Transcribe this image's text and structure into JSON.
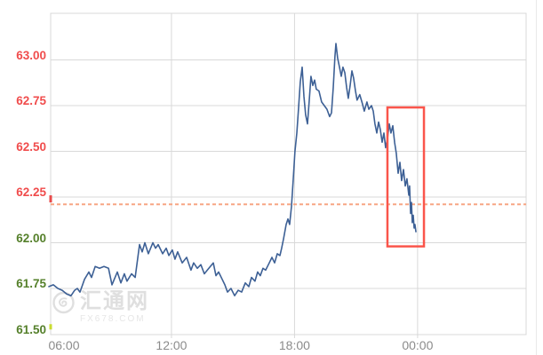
{
  "watermark": {
    "name": "汇通网",
    "domain": "FX678.COM"
  },
  "colors": {
    "background": "#ffffff",
    "grid": "#d9d9d9",
    "plot_border": "#d9d9d9",
    "line": "#3d6095",
    "red_tick_label": "#f04c4c",
    "green_tick_label": "#55802b",
    "x_tick_label": "#8b8b8b",
    "reference_line": "#f7a684",
    "highlight_box": "#fa554b",
    "watermark": "#dfdfdf",
    "right_edge_line": "#e9e9e9"
  },
  "chart_data": {
    "type": "line",
    "title": "",
    "xlabel": "",
    "ylabel": "",
    "grid": true,
    "legend": false,
    "x_axis": {
      "labels": [
        "06:00",
        "12:00",
        "18:00",
        "00:00"
      ],
      "hours_from_start": [
        0,
        6,
        12,
        18
      ]
    },
    "y_axis": {
      "ticks": [
        63.0,
        62.75,
        62.5,
        62.25,
        62.0,
        61.75,
        61.5
      ],
      "tick_labels": [
        "63.00",
        "62.75",
        "62.50",
        "62.25",
        "62.00",
        "61.75",
        "61.50"
      ],
      "tick_colors": [
        "#f04c4c",
        "#f04c4c",
        "#f04c4c",
        "#f04c4c",
        "#55802b",
        "#55802b",
        "#55802b"
      ]
    },
    "ylim": [
      61.46,
      63.26
    ],
    "xlim_hours": [
      0.0,
      23.3
    ],
    "reference_line": {
      "value": 62.21,
      "style": "dashed",
      "color": "#f7a684"
    },
    "highlight_box": {
      "t0": 16.53,
      "t1": 18.31,
      "v0": 61.98,
      "v1": 62.74,
      "color": "#fa554b"
    },
    "axis_marks": [
      {
        "value": 62.24,
        "height": 8,
        "color": "#e84a4a"
      },
      {
        "value": 61.54,
        "height": 6,
        "color": "#c9dc30"
      }
    ],
    "series": [
      {
        "name": "price",
        "color": "#3d6095",
        "points": [
          [
            0.02,
            61.76
          ],
          [
            0.24,
            61.77
          ],
          [
            0.46,
            61.75
          ],
          [
            0.67,
            61.74
          ],
          [
            0.89,
            61.72
          ],
          [
            1.1,
            61.71
          ],
          [
            1.28,
            61.74
          ],
          [
            1.41,
            61.75
          ],
          [
            1.54,
            61.73
          ],
          [
            1.76,
            61.8
          ],
          [
            1.97,
            61.84
          ],
          [
            2.1,
            61.81
          ],
          [
            2.28,
            61.87
          ],
          [
            2.49,
            61.86
          ],
          [
            2.71,
            61.87
          ],
          [
            2.93,
            61.86
          ],
          [
            3.1,
            61.77
          ],
          [
            3.36,
            61.84
          ],
          [
            3.53,
            61.78
          ],
          [
            3.7,
            61.83
          ],
          [
            3.83,
            61.79
          ],
          [
            4.05,
            61.83
          ],
          [
            4.23,
            61.81
          ],
          [
            4.44,
            61.99
          ],
          [
            4.57,
            61.95
          ],
          [
            4.7,
            62.0
          ],
          [
            4.87,
            61.94
          ],
          [
            5.09,
            62.0
          ],
          [
            5.22,
            61.97
          ],
          [
            5.35,
            61.99
          ],
          [
            5.57,
            61.94
          ],
          [
            5.74,
            61.97
          ],
          [
            5.87,
            61.93
          ],
          [
            6.04,
            61.96
          ],
          [
            6.17,
            61.91
          ],
          [
            6.3,
            61.95
          ],
          [
            6.52,
            61.89
          ],
          [
            6.74,
            61.92
          ],
          [
            6.95,
            61.85
          ],
          [
            7.08,
            61.89
          ],
          [
            7.26,
            61.86
          ],
          [
            7.43,
            61.88
          ],
          [
            7.6,
            61.83
          ],
          [
            7.82,
            61.86
          ],
          [
            8.04,
            61.89
          ],
          [
            8.17,
            61.82
          ],
          [
            8.3,
            61.84
          ],
          [
            8.47,
            61.8
          ],
          [
            8.6,
            61.77
          ],
          [
            8.73,
            61.73
          ],
          [
            8.9,
            61.75
          ],
          [
            9.08,
            61.71
          ],
          [
            9.25,
            61.74
          ],
          [
            9.42,
            61.73
          ],
          [
            9.6,
            61.78
          ],
          [
            9.77,
            61.76
          ],
          [
            9.9,
            61.81
          ],
          [
            10.07,
            61.79
          ],
          [
            10.2,
            61.84
          ],
          [
            10.33,
            61.82
          ],
          [
            10.46,
            61.86
          ],
          [
            10.59,
            61.85
          ],
          [
            10.77,
            61.89
          ],
          [
            10.9,
            61.92
          ],
          [
            11.03,
            61.89
          ],
          [
            11.16,
            61.94
          ],
          [
            11.29,
            61.93
          ],
          [
            11.37,
            61.97
          ],
          [
            11.46,
            62.02
          ],
          [
            11.59,
            62.1
          ],
          [
            11.68,
            62.13
          ],
          [
            11.76,
            62.1
          ],
          [
            11.85,
            62.2
          ],
          [
            11.94,
            62.35
          ],
          [
            12.02,
            62.5
          ],
          [
            12.11,
            62.6
          ],
          [
            12.2,
            62.74
          ],
          [
            12.28,
            62.88
          ],
          [
            12.37,
            62.96
          ],
          [
            12.46,
            62.8
          ],
          [
            12.54,
            62.7
          ],
          [
            12.63,
            62.65
          ],
          [
            12.72,
            62.78
          ],
          [
            12.8,
            62.91
          ],
          [
            12.89,
            62.86
          ],
          [
            12.98,
            62.89
          ],
          [
            13.06,
            62.84
          ],
          [
            13.19,
            62.83
          ],
          [
            13.32,
            62.77
          ],
          [
            13.45,
            62.75
          ],
          [
            13.58,
            62.73
          ],
          [
            13.71,
            62.69
          ],
          [
            13.8,
            62.71
          ],
          [
            13.89,
            62.85
          ],
          [
            13.97,
            63.02
          ],
          [
            14.02,
            63.09
          ],
          [
            14.1,
            63.01
          ],
          [
            14.19,
            62.96
          ],
          [
            14.28,
            62.91
          ],
          [
            14.36,
            62.96
          ],
          [
            14.45,
            62.93
          ],
          [
            14.54,
            62.85
          ],
          [
            14.62,
            62.79
          ],
          [
            14.71,
            62.86
          ],
          [
            14.8,
            62.94
          ],
          [
            14.88,
            62.9
          ],
          [
            14.97,
            62.83
          ],
          [
            15.05,
            62.78
          ],
          [
            15.18,
            62.81
          ],
          [
            15.31,
            62.76
          ],
          [
            15.4,
            62.72
          ],
          [
            15.53,
            62.77
          ],
          [
            15.62,
            62.73
          ],
          [
            15.75,
            62.75
          ],
          [
            15.84,
            62.72
          ],
          [
            15.92,
            62.65
          ],
          [
            16.01,
            62.6
          ],
          [
            16.1,
            62.66
          ],
          [
            16.18,
            62.62
          ],
          [
            16.27,
            62.55
          ],
          [
            16.36,
            62.6
          ],
          [
            16.44,
            62.52
          ],
          [
            16.53,
            62.57
          ],
          [
            16.62,
            62.65
          ],
          [
            16.7,
            62.6
          ],
          [
            16.79,
            62.64
          ],
          [
            16.88,
            62.55
          ],
          [
            16.96,
            62.49
          ],
          [
            17.05,
            62.38
          ],
          [
            17.14,
            62.44
          ],
          [
            17.22,
            62.34
          ],
          [
            17.31,
            62.4
          ],
          [
            17.4,
            62.31
          ],
          [
            17.48,
            62.35
          ],
          [
            17.57,
            62.26
          ],
          [
            17.61,
            62.31
          ],
          [
            17.66,
            62.16
          ],
          [
            17.7,
            62.22
          ],
          [
            17.74,
            62.11
          ],
          [
            17.79,
            62.15
          ],
          [
            17.83,
            62.08
          ],
          [
            17.87,
            62.1
          ],
          [
            17.92,
            62.06
          ]
        ]
      }
    ]
  }
}
